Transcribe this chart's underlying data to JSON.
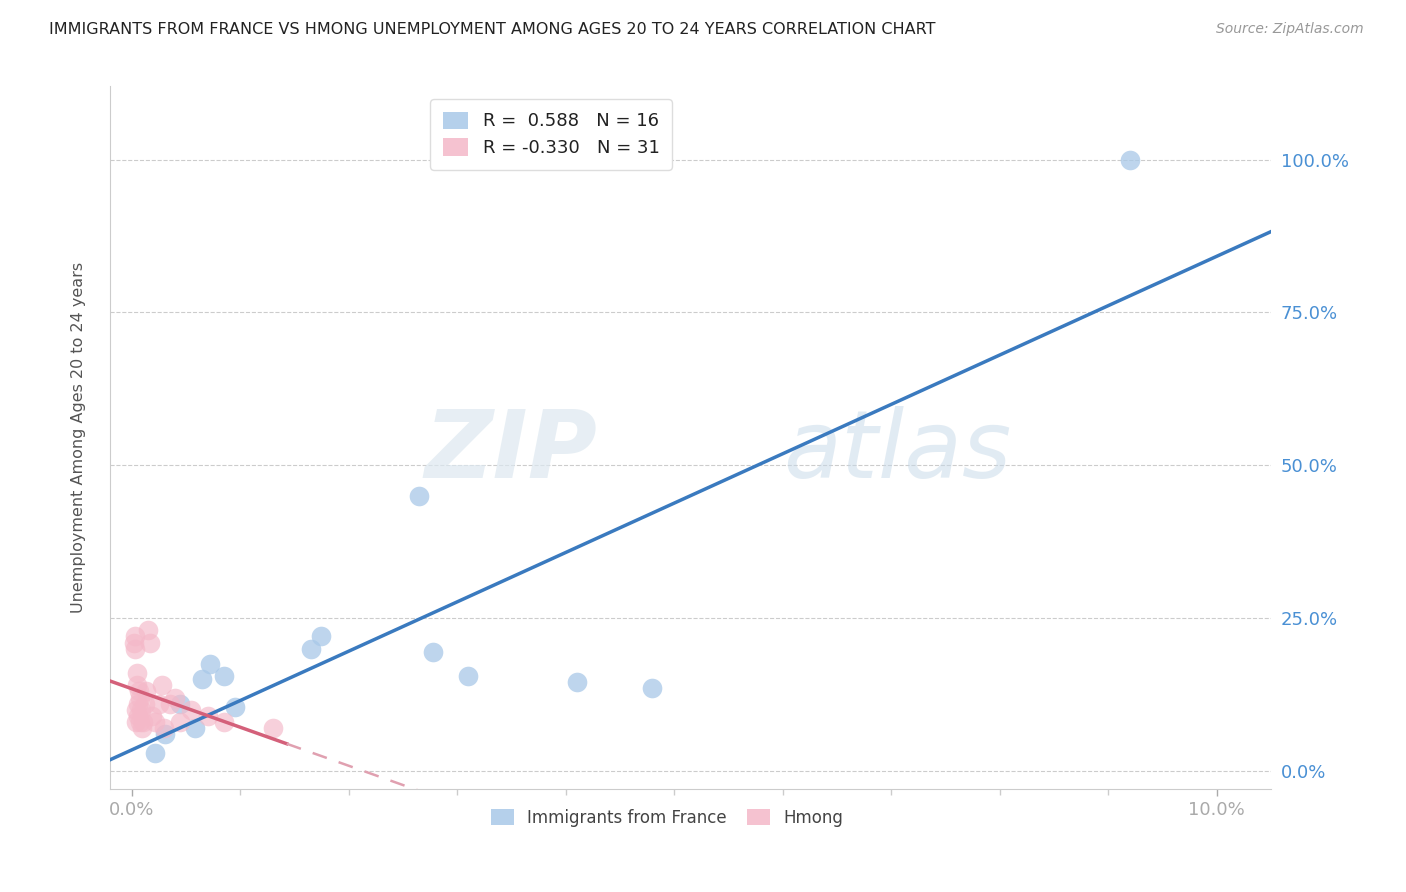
{
  "title": "IMMIGRANTS FROM FRANCE VS HMONG UNEMPLOYMENT AMONG AGES 20 TO 24 YEARS CORRELATION CHART",
  "source": "Source: ZipAtlas.com",
  "ylabel_label": "Unemployment Among Ages 20 to 24 years",
  "legend_blue_r": "0.588",
  "legend_blue_n": "16",
  "legend_pink_r": "-0.330",
  "legend_pink_n": "31",
  "legend_label_blue": "Immigrants from France",
  "legend_label_pink": "Hmong",
  "watermark_zip": "ZIP",
  "watermark_atlas": "atlas",
  "blue_color": "#a8c8e8",
  "pink_color": "#f4b8c8",
  "blue_line_color": "#3a7abf",
  "pink_line_color": "#d4607a",
  "pink_line_dash_color": "#e0a0b0",
  "background_color": "#ffffff",
  "tick_color": "#4a90d4",
  "blue_scatter_x": [
    0.22,
    0.31,
    0.45,
    0.58,
    0.65,
    0.72,
    0.85,
    0.95,
    1.65,
    1.75,
    2.65,
    2.78,
    3.1,
    4.1,
    4.8,
    9.2
  ],
  "blue_scatter_y": [
    3.0,
    6.0,
    11.0,
    7.0,
    15.0,
    17.5,
    15.5,
    10.5,
    20.0,
    22.0,
    45.0,
    19.5,
    15.5,
    14.5,
    13.5,
    100.0
  ],
  "pink_scatter_x": [
    0.02,
    0.03,
    0.03,
    0.04,
    0.04,
    0.05,
    0.05,
    0.06,
    0.06,
    0.07,
    0.08,
    0.08,
    0.09,
    0.1,
    0.11,
    0.12,
    0.13,
    0.15,
    0.17,
    0.19,
    0.22,
    0.25,
    0.28,
    0.3,
    0.35,
    0.4,
    0.45,
    0.55,
    0.7,
    0.85,
    1.3
  ],
  "pink_scatter_y": [
    21.0,
    20.0,
    22.0,
    8.0,
    10.0,
    14.0,
    16.0,
    9.0,
    11.0,
    13.0,
    8.0,
    12.0,
    10.0,
    7.0,
    8.0,
    11.0,
    13.0,
    23.0,
    21.0,
    9.0,
    8.0,
    11.0,
    14.0,
    7.0,
    11.0,
    12.0,
    8.0,
    10.0,
    9.0,
    8.0,
    7.0
  ],
  "xlim": [
    -0.2,
    10.5
  ],
  "ylim": [
    -3.0,
    112.0
  ],
  "yticks": [
    0,
    25,
    50,
    75,
    100
  ],
  "ytick_labels": [
    "0.0%",
    "25.0%",
    "50.0%",
    "75.0%",
    "100.0%"
  ],
  "xticks": [
    0,
    10
  ],
  "xtick_labels": [
    "0.0%",
    "10.0%"
  ]
}
